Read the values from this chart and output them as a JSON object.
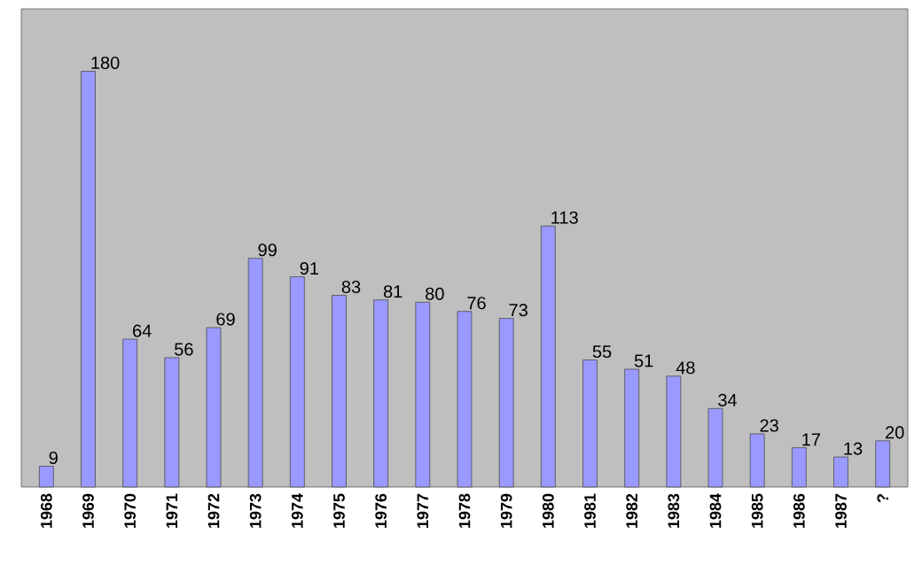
{
  "chart_data": {
    "type": "bar",
    "categories": [
      "1968",
      "1969",
      "1970",
      "1971",
      "1972",
      "1973",
      "1974",
      "1975",
      "1976",
      "1977",
      "1978",
      "1979",
      "1980",
      "1981",
      "1982",
      "1983",
      "1984",
      "1985",
      "1986",
      "1987",
      "?"
    ],
    "values": [
      9,
      180,
      64,
      56,
      69,
      99,
      91,
      83,
      81,
      80,
      76,
      73,
      113,
      55,
      51,
      48,
      34,
      23,
      17,
      13,
      20
    ],
    "color": "#9999ff",
    "data_labels": true
  }
}
